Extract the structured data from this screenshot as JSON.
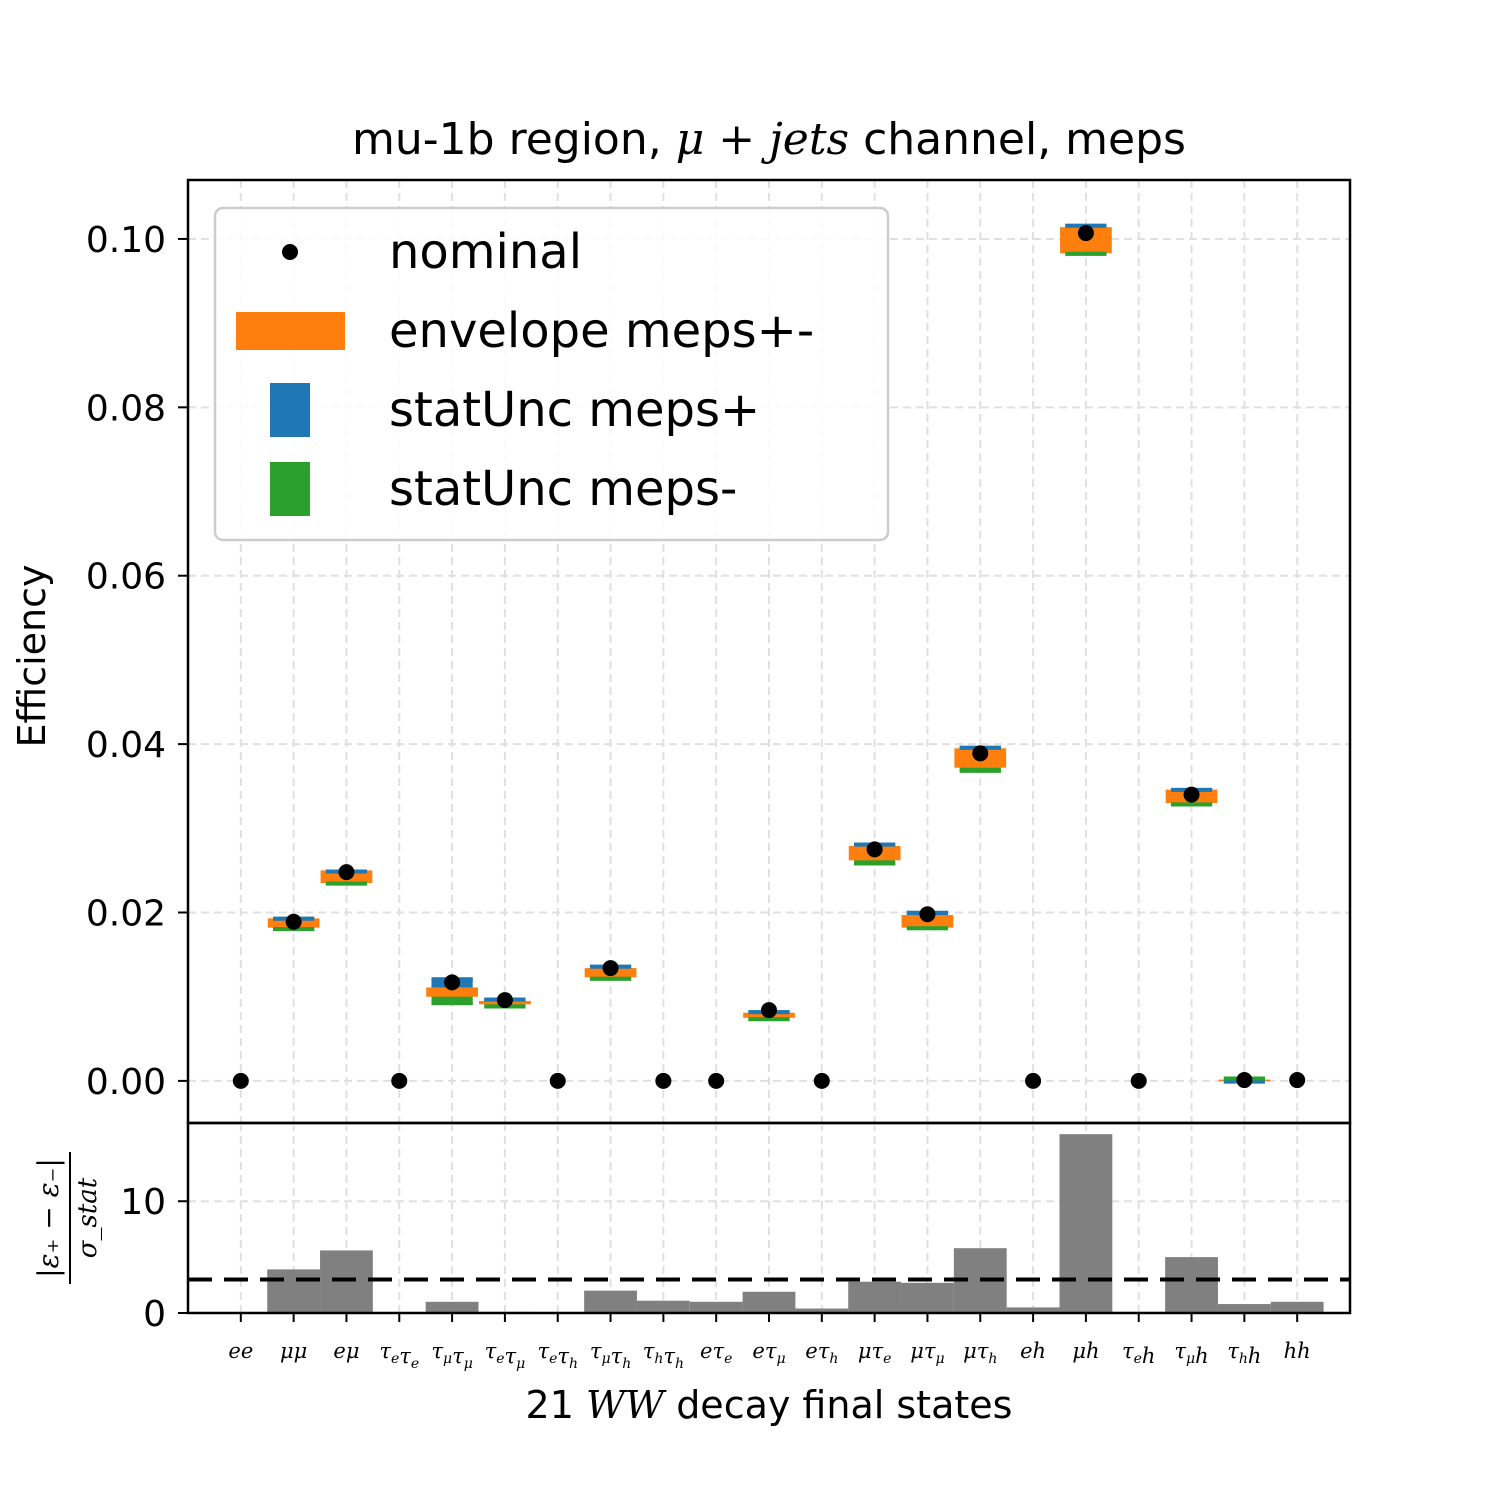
{
  "chart_data": {
    "title_parts": {
      "prefix": "mu-1b region, ",
      "math": "μ + jets",
      "suffix": " channel, meps"
    },
    "top_panel": {
      "type": "scatter",
      "ylabel": "Efficiency",
      "ylim": [
        -0.005,
        0.107
      ],
      "yticks": [
        0.0,
        0.02,
        0.04,
        0.06,
        0.08,
        0.1
      ],
      "ytick_labels": [
        "0.00",
        "0.02",
        "0.04",
        "0.06",
        "0.08",
        "0.10"
      ],
      "grid": true,
      "legend_position": "upper left",
      "legend": [
        {
          "key": "nominal",
          "label": "nominal",
          "marker": "dot",
          "color": "#000000"
        },
        {
          "key": "envelope",
          "label": "envelope meps+-",
          "marker": "rect",
          "color": "#ff7f0e"
        },
        {
          "key": "stat_plus",
          "label": "statUnc meps+",
          "marker": "rect",
          "color": "#1f77b4"
        },
        {
          "key": "stat_minus",
          "label": "statUnc meps-",
          "marker": "rect",
          "color": "#2ca02c"
        }
      ],
      "nominal": [
        0.0,
        0.0189,
        0.0248,
        0.0,
        0.0117,
        0.0096,
        0.0,
        0.0134,
        0.0,
        0.0,
        0.0084,
        0.0,
        0.0275,
        0.0198,
        0.0389,
        0.0,
        0.1007,
        0.0,
        0.034,
        0.0001,
        0.0001
      ],
      "envelope": [
        null,
        [
          0.0182,
          0.0193
        ],
        [
          0.0235,
          0.025
        ],
        null,
        [
          0.01,
          0.0111
        ],
        [
          0.0091,
          0.0095
        ],
        null,
        [
          0.0123,
          0.0134
        ],
        null,
        null,
        [
          0.0075,
          0.0081
        ],
        null,
        [
          0.0262,
          0.0279
        ],
        [
          0.0182,
          0.0197
        ],
        [
          0.0372,
          0.0395
        ],
        null,
        [
          0.0983,
          0.1014
        ],
        null,
        [
          0.033,
          0.0346
        ],
        [
          5e-05,
          0.00015
        ],
        null
      ],
      "stat_plus": [
        null,
        [
          0.0188,
          0.0195
        ],
        [
          0.0244,
          0.0251
        ],
        null,
        [
          0.0105,
          0.0123
        ],
        [
          0.0091,
          0.0099
        ],
        null,
        [
          0.013,
          0.0138
        ],
        null,
        null,
        [
          0.0078,
          0.0084
        ],
        null,
        [
          0.0273,
          0.0283
        ],
        [
          0.0193,
          0.0202
        ],
        [
          0.0388,
          0.0398
        ],
        null,
        [
          0.0998,
          0.1018
        ],
        null,
        [
          0.0339,
          0.0348
        ],
        [
          5e-05,
          0.00015
        ],
        null
      ],
      "stat_minus": [
        null,
        [
          0.0178,
          0.0185
        ],
        [
          0.0232,
          0.0238
        ],
        null,
        [
          0.009,
          0.0107
        ],
        [
          0.0086,
          0.0097
        ],
        null,
        [
          0.0119,
          0.0127
        ],
        null,
        null,
        [
          0.0071,
          0.0077
        ],
        null,
        [
          0.0256,
          0.0266
        ],
        [
          0.0179,
          0.0188
        ],
        [
          0.0366,
          0.0376
        ],
        null,
        [
          0.098,
          0.0998
        ],
        null,
        [
          0.0326,
          0.0333
        ],
        [
          5e-05,
          0.00015
        ],
        null
      ]
    },
    "bottom_panel": {
      "type": "bar",
      "ylabel": {
        "num": "|ε₊ − ε₋|",
        "den": "σ_stat"
      },
      "ylim": [
        0,
        17
      ],
      "yticks": [
        0,
        10
      ],
      "ytick_labels": [
        "0",
        "10"
      ],
      "threshold": 3,
      "values": [
        0.0,
        3.9,
        5.6,
        0.0,
        1.0,
        0.1,
        0.0,
        2.0,
        1.1,
        1.0,
        1.9,
        0.4,
        2.8,
        2.7,
        5.8,
        0.5,
        16.0,
        0.1,
        5.0,
        0.8,
        1.0
      ],
      "color": "#808080"
    },
    "categories": [
      [
        [
          "e",
          ""
        ],
        [
          "e",
          ""
        ]
      ],
      [
        [
          "μ",
          ""
        ],
        [
          "μ",
          ""
        ]
      ],
      [
        [
          "e",
          ""
        ],
        [
          "μ",
          ""
        ]
      ],
      [
        [
          "τ",
          "e"
        ],
        [
          "τ",
          "e"
        ]
      ],
      [
        [
          "τ",
          "μ"
        ],
        [
          "τ",
          "μ"
        ]
      ],
      [
        [
          "τ",
          "e"
        ],
        [
          "τ",
          "μ"
        ]
      ],
      [
        [
          "τ",
          "e"
        ],
        [
          "τ",
          "h"
        ]
      ],
      [
        [
          "τ",
          "μ"
        ],
        [
          "τ",
          "h"
        ]
      ],
      [
        [
          "τ",
          "h"
        ],
        [
          "τ",
          "h"
        ]
      ],
      [
        [
          "e",
          ""
        ],
        [
          "τ",
          "e"
        ]
      ],
      [
        [
          "e",
          ""
        ],
        [
          "τ",
          "μ"
        ]
      ],
      [
        [
          "e",
          ""
        ],
        [
          "τ",
          "h"
        ]
      ],
      [
        [
          "μ",
          ""
        ],
        [
          "τ",
          "e"
        ]
      ],
      [
        [
          "μ",
          ""
        ],
        [
          "τ",
          "μ"
        ]
      ],
      [
        [
          "μ",
          ""
        ],
        [
          "τ",
          "h"
        ]
      ],
      [
        [
          "e",
          ""
        ],
        [
          "h",
          ""
        ]
      ],
      [
        [
          "μ",
          ""
        ],
        [
          "h",
          ""
        ]
      ],
      [
        [
          "τ",
          "e"
        ],
        [
          "h",
          ""
        ]
      ],
      [
        [
          "τ",
          "μ"
        ],
        [
          "h",
          ""
        ]
      ],
      [
        [
          "τ",
          "h"
        ],
        [
          "h",
          ""
        ]
      ],
      [
        [
          "h",
          ""
        ],
        [
          "h",
          ""
        ]
      ]
    ],
    "xlabel_parts": {
      "prefix": "21 ",
      "math": "WW",
      "suffix": " decay final states"
    }
  }
}
